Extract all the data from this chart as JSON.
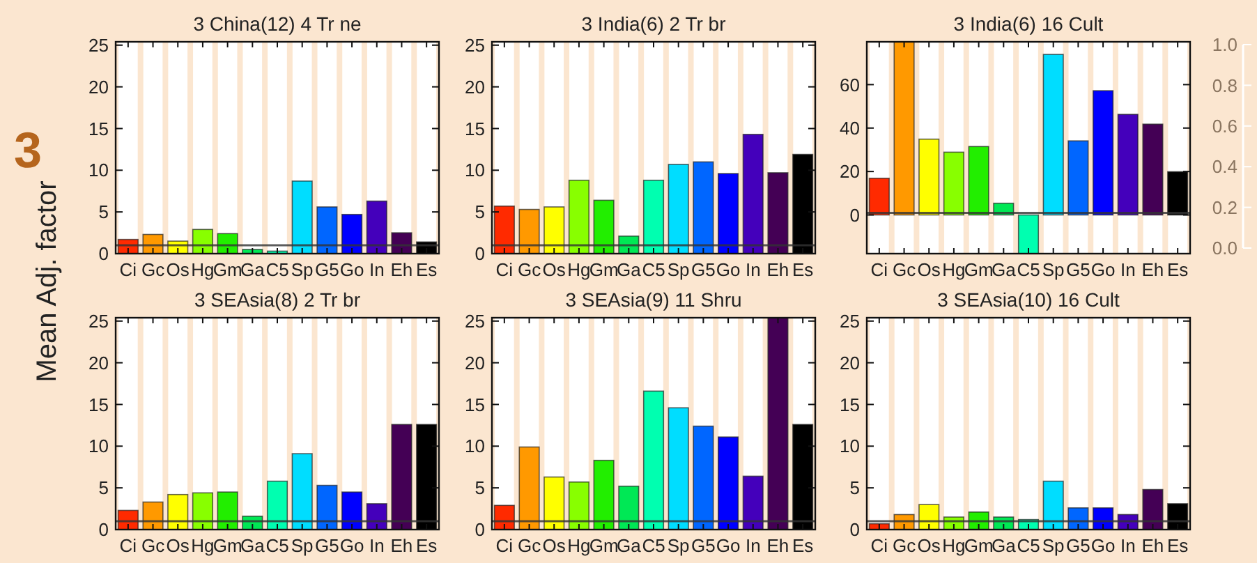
{
  "chart_data": [
    {
      "type": "bar",
      "title": "3 China(12) 4 Tr ne",
      "ylabel": "Mean Adj. factor",
      "annotations": [
        "3"
      ],
      "categories": [
        "Ci",
        "Gc",
        "Os",
        "Hg",
        "Gm",
        "Ga",
        "C5",
        "Sp",
        "G5",
        "Go",
        "In",
        "Eh",
        "Es"
      ],
      "colors": [
        "#ff2a00",
        "#ff9900",
        "#ffff00",
        "#88ff00",
        "#22ee00",
        "#00e855",
        "#00ffb0",
        "#00ddff",
        "#0066ff",
        "#0000ff",
        "#4400bb",
        "#440055",
        "#000000"
      ],
      "values": [
        1.7,
        2.3,
        1.5,
        2.9,
        2.4,
        0.5,
        0.3,
        8.7,
        5.6,
        4.7,
        6.3,
        2.5,
        1.4
      ],
      "ylim": [
        0,
        25.4
      ],
      "yticks": [
        0,
        5,
        10,
        15,
        20,
        25
      ],
      "ref_lines": [
        {
          "axis": "y",
          "value": 1,
          "color": "#333333"
        }
      ]
    },
    {
      "type": "bar",
      "title": "3 India(6) 2 Tr br",
      "categories": [
        "Ci",
        "Gc",
        "Os",
        "Hg",
        "Gm",
        "Ga",
        "C5",
        "Sp",
        "G5",
        "Go",
        "In",
        "Eh",
        "Es"
      ],
      "colors": [
        "#ff2a00",
        "#ff9900",
        "#ffff00",
        "#88ff00",
        "#22ee00",
        "#00e855",
        "#00ffb0",
        "#00ddff",
        "#0066ff",
        "#0000ff",
        "#4400bb",
        "#440055",
        "#000000"
      ],
      "values": [
        5.7,
        5.3,
        5.6,
        8.8,
        6.4,
        2.1,
        8.8,
        10.7,
        11.0,
        9.6,
        14.3,
        9.7,
        11.9
      ],
      "ylim": [
        0,
        25.4
      ],
      "yticks": [
        0,
        5,
        10,
        15,
        20,
        25
      ],
      "ref_lines": [
        {
          "axis": "y",
          "value": 1,
          "color": "#333333"
        }
      ]
    },
    {
      "type": "bar",
      "title": "3 India(6) 16 Cult",
      "categories": [
        "Ci",
        "Gc",
        "Os",
        "Hg",
        "Gm",
        "Ga",
        "C5",
        "Sp",
        "G5",
        "Go",
        "In",
        "Eh",
        "Es"
      ],
      "colors": [
        "#ff2a00",
        "#ff9900",
        "#ffff00",
        "#88ff00",
        "#22ee00",
        "#00e855",
        "#00ffb0",
        "#00ddff",
        "#0066ff",
        "#0000ff",
        "#4400bb",
        "#440055",
        "#000000"
      ],
      "values": [
        16.9,
        79.7,
        34.9,
        28.9,
        31.5,
        5.4,
        -17.8,
        73.9,
        34.1,
        57.2,
        46.3,
        41.8,
        19.9
      ],
      "ylim": [
        -17.8,
        79.7
      ],
      "yticks": [
        0,
        20,
        40,
        60
      ],
      "y2lim": [
        0,
        1
      ],
      "y2ticks": [
        {
          "value": 0,
          "label": "0.0"
        },
        {
          "value": 0.2,
          "label": "0.2"
        },
        {
          "value": 0.4,
          "label": "0.4"
        },
        {
          "value": 0.6,
          "label": "0.6"
        },
        {
          "value": 0.8,
          "label": "0.8"
        },
        {
          "value": 1,
          "label": "1.0"
        }
      ],
      "ref_lines": [
        {
          "axis": "y",
          "value": 1,
          "color": "#333333"
        }
      ]
    },
    {
      "type": "bar",
      "title": "3 SEAsia(8) 2 Tr br",
      "categories": [
        "Ci",
        "Gc",
        "Os",
        "Hg",
        "Gm",
        "Ga",
        "C5",
        "Sp",
        "G5",
        "Go",
        "In",
        "Eh",
        "Es"
      ],
      "colors": [
        "#ff2a00",
        "#ff9900",
        "#ffff00",
        "#88ff00",
        "#22ee00",
        "#00e855",
        "#00ffb0",
        "#00ddff",
        "#0066ff",
        "#0000ff",
        "#4400bb",
        "#440055",
        "#000000"
      ],
      "values": [
        2.3,
        3.3,
        4.2,
        4.4,
        4.5,
        1.6,
        5.8,
        9.1,
        5.3,
        4.5,
        3.1,
        12.6,
        12.6
      ],
      "ylim": [
        0,
        25.4
      ],
      "yticks": [
        0,
        5,
        10,
        15,
        20,
        25
      ],
      "ref_lines": [
        {
          "axis": "y",
          "value": 1,
          "color": "#333333"
        }
      ]
    },
    {
      "type": "bar",
      "title": "3 SEAsia(9) 11 Shru",
      "categories": [
        "Ci",
        "Gc",
        "Os",
        "Hg",
        "Gm",
        "Ga",
        "C5",
        "Sp",
        "G5",
        "Go",
        "In",
        "Eh",
        "Es"
      ],
      "colors": [
        "#ff2a00",
        "#ff9900",
        "#ffff00",
        "#88ff00",
        "#22ee00",
        "#00e855",
        "#00ffb0",
        "#00ddff",
        "#0066ff",
        "#0000ff",
        "#4400bb",
        "#440055",
        "#000000"
      ],
      "values": [
        2.9,
        9.9,
        6.3,
        5.7,
        8.3,
        5.2,
        16.6,
        14.6,
        12.4,
        11.1,
        6.4,
        25.4,
        12.6
      ],
      "ylim": [
        0,
        25.4
      ],
      "yticks": [
        0,
        5,
        10,
        15,
        20,
        25
      ],
      "ref_lines": [
        {
          "axis": "y",
          "value": 1,
          "color": "#333333"
        }
      ]
    },
    {
      "type": "bar",
      "title": "3 SEAsia(10) 16 Cult",
      "categories": [
        "Ci",
        "Gc",
        "Os",
        "Hg",
        "Gm",
        "Ga",
        "C5",
        "Sp",
        "G5",
        "Go",
        "In",
        "Eh",
        "Es"
      ],
      "colors": [
        "#ff2a00",
        "#ff9900",
        "#ffff00",
        "#88ff00",
        "#22ee00",
        "#00e855",
        "#00ffb0",
        "#00ddff",
        "#0066ff",
        "#0000ff",
        "#4400bb",
        "#440055",
        "#000000"
      ],
      "values": [
        0.7,
        1.8,
        3.0,
        1.5,
        2.1,
        1.5,
        1.2,
        5.8,
        2.6,
        2.6,
        1.8,
        4.8,
        3.1
      ],
      "ylim": [
        0,
        25.4
      ],
      "yticks": [
        0,
        5,
        10,
        15,
        20,
        25
      ],
      "ref_lines": [
        {
          "axis": "y",
          "value": 1,
          "color": "#333333"
        }
      ]
    }
  ]
}
